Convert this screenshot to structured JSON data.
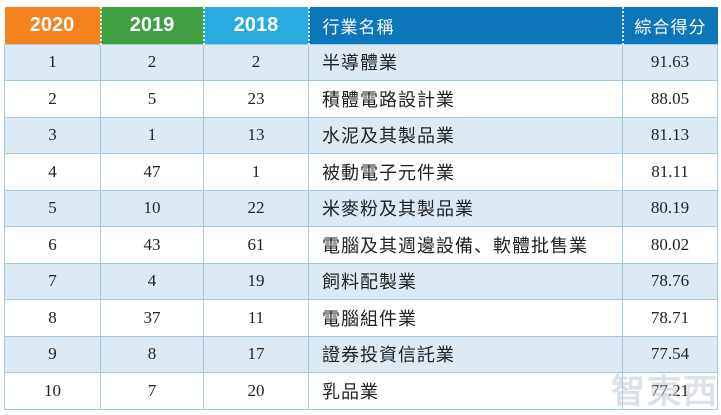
{
  "watermark": {
    "text": "智東西"
  },
  "colors": {
    "hdr-2020": "#F6821F",
    "hdr-2019": "#3FA044",
    "hdr-2018": "#29ABE2",
    "hdr-blue": "#0B76B9",
    "row-alt": "#DDEAF4",
    "row-base": "#FFFFFF",
    "border": "#A5C9DE",
    "text": "#222222"
  },
  "chart_data": {
    "type": "table",
    "title": "",
    "columns": [
      {
        "key": "r2020",
        "label": "2020"
      },
      {
        "key": "r2019",
        "label": "2019"
      },
      {
        "key": "r2018",
        "label": "2018"
      },
      {
        "key": "industry",
        "label": "行業名稱"
      },
      {
        "key": "score",
        "label": "綜合得分"
      }
    ],
    "rows": [
      {
        "r2020": "1",
        "r2019": "2",
        "r2018": "2",
        "industry": "半導體業",
        "score": "91.63"
      },
      {
        "r2020": "2",
        "r2019": "5",
        "r2018": "23",
        "industry": "積體電路設計業",
        "score": "88.05"
      },
      {
        "r2020": "3",
        "r2019": "1",
        "r2018": "13",
        "industry": "水泥及其製品業",
        "score": "81.13"
      },
      {
        "r2020": "4",
        "r2019": "47",
        "r2018": "1",
        "industry": "被動電子元件業",
        "score": "81.11"
      },
      {
        "r2020": "5",
        "r2019": "10",
        "r2018": "22",
        "industry": "米麥粉及其製品業",
        "score": "80.19"
      },
      {
        "r2020": "6",
        "r2019": "43",
        "r2018": "61",
        "industry": "電腦及其週邊設備、軟體批售業",
        "score": "80.02"
      },
      {
        "r2020": "7",
        "r2019": "4",
        "r2018": "19",
        "industry": "飼料配製業",
        "score": "78.76"
      },
      {
        "r2020": "8",
        "r2019": "37",
        "r2018": "11",
        "industry": "電腦組件業",
        "score": "78.71"
      },
      {
        "r2020": "9",
        "r2019": "8",
        "r2018": "17",
        "industry": "證券投資信託業",
        "score": "77.54"
      },
      {
        "r2020": "10",
        "r2019": "7",
        "r2018": "20",
        "industry": "乳品業",
        "score": "77.21"
      }
    ]
  }
}
